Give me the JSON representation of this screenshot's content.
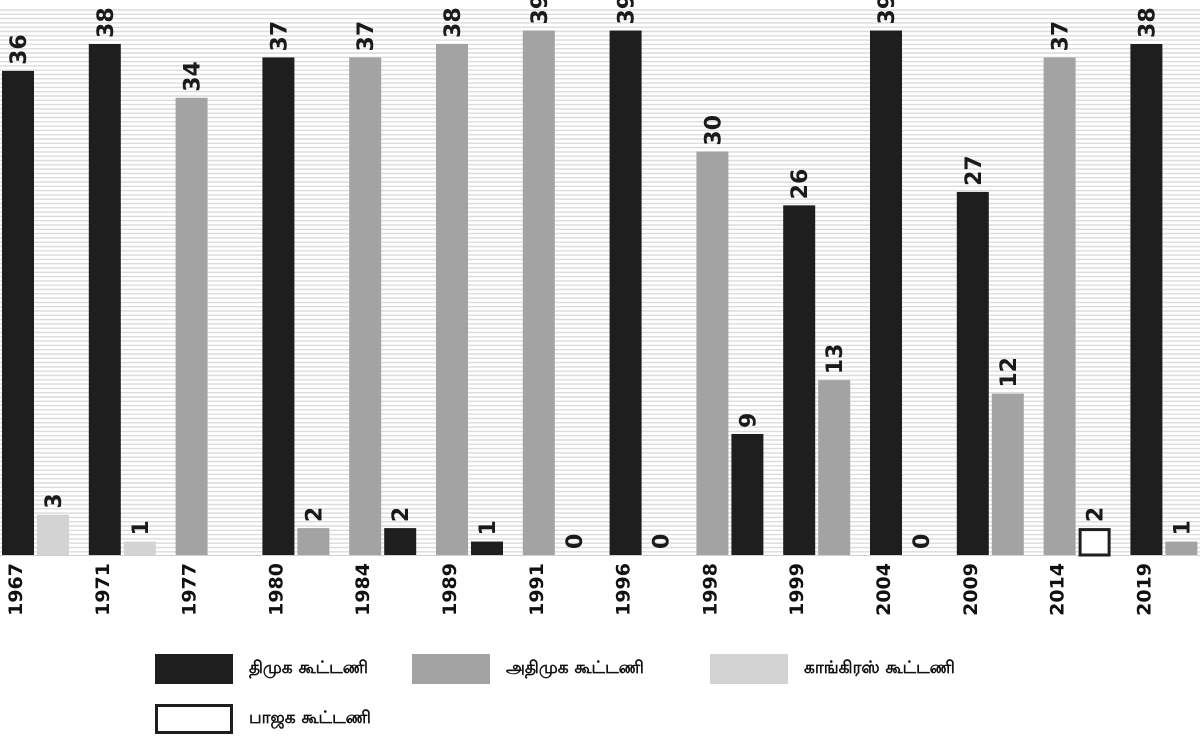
{
  "chart_data": {
    "type": "bar",
    "categories": [
      "1967",
      "1971",
      "1977",
      "1980",
      "1984",
      "1989",
      "1991",
      "1996",
      "1998",
      "1999",
      "2004",
      "2009",
      "2014",
      "2019"
    ],
    "series": [
      {
        "name": "திமுக கூட்டணி",
        "color": "#1e1e1e",
        "values": [
          36,
          38,
          null,
          37,
          2,
          1,
          0,
          39,
          9,
          26,
          39,
          27,
          null,
          38
        ],
        "slot": [
          0,
          0,
          1,
          0,
          1,
          1,
          1,
          0,
          1,
          0,
          0,
          0,
          null,
          0
        ]
      },
      {
        "name": "அதிமுக கூட்டணி",
        "color": "#a3a3a3",
        "values": [
          null,
          null,
          34,
          2,
          37,
          38,
          39,
          0,
          30,
          13,
          0,
          12,
          37,
          1
        ],
        "slot": [
          null,
          null,
          0,
          1,
          0,
          0,
          0,
          1,
          0,
          1,
          1,
          1,
          0,
          1
        ]
      },
      {
        "name": "காங்கிரஸ் கூட்டணி",
        "color": "#d3d3d3",
        "values": [
          3,
          1,
          null,
          null,
          null,
          null,
          null,
          null,
          null,
          null,
          null,
          null,
          null,
          null
        ],
        "slot": [
          1,
          1,
          null,
          null,
          null,
          null,
          null,
          null,
          null,
          null,
          null,
          null,
          null,
          null
        ]
      },
      {
        "name": "பாஜக கூட்டணி",
        "color": "#ffffff",
        "values": [
          null,
          null,
          null,
          null,
          null,
          null,
          null,
          null,
          null,
          null,
          null,
          null,
          2,
          null
        ],
        "slot": [
          null,
          null,
          null,
          null,
          null,
          null,
          null,
          null,
          null,
          null,
          null,
          null,
          1,
          null
        ]
      }
    ],
    "ylim": [
      0,
      40
    ],
    "grid": true,
    "legend": "bottom",
    "title": "",
    "xlabel": "",
    "ylabel": ""
  }
}
